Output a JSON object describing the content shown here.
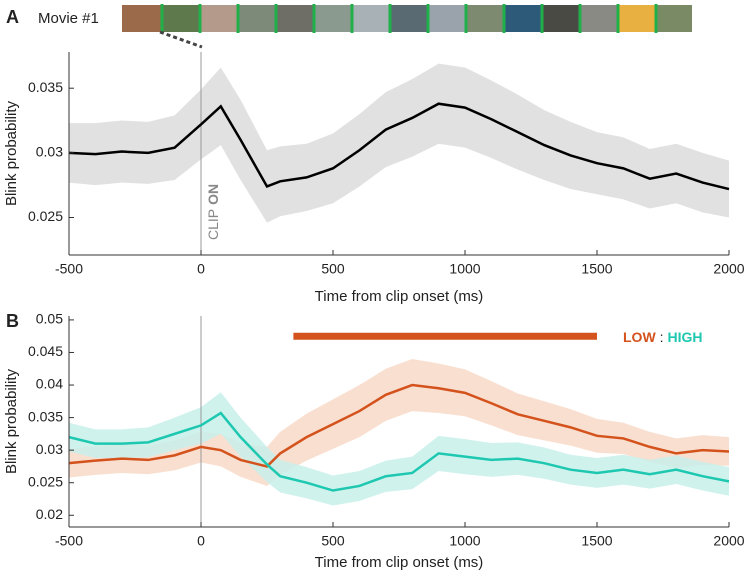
{
  "panel_labels": [
    "A",
    "B"
  ],
  "movie_label": "Movie #1",
  "chart_data": [
    {
      "type": "line-band",
      "clip_label": [
        "CLIP",
        "ON"
      ],
      "xlabel": "Time from clip onset (ms)",
      "ylabel": "Blink probability",
      "xlim": [
        -500,
        2000
      ],
      "ylim": [
        0.0221,
        0.0378
      ],
      "xticks": [
        -500,
        0,
        500,
        1000,
        1500,
        2000
      ],
      "yticks": [
        0.025,
        0.03,
        0.035
      ],
      "vline": 0,
      "x": [
        -500,
        -400,
        -300,
        -200,
        -100,
        0,
        75,
        150,
        250,
        300,
        400,
        500,
        600,
        700,
        800,
        900,
        1000,
        1100,
        1200,
        1300,
        1400,
        1500,
        1600,
        1700,
        1800,
        1900,
        2000
      ],
      "series": [
        {
          "color": "#000000",
          "band_color": "#dcdcdc",
          "values": [
            0.03,
            0.0299,
            0.0301,
            0.03,
            0.0304,
            0.0322,
            0.0336,
            0.031,
            0.0274,
            0.0278,
            0.0281,
            0.0288,
            0.0302,
            0.0318,
            0.0327,
            0.0338,
            0.0335,
            0.0326,
            0.0316,
            0.0306,
            0.0298,
            0.0292,
            0.0288,
            0.028,
            0.0284,
            0.0277,
            0.0272
          ],
          "error": [
            0.0023,
            0.0024,
            0.0024,
            0.0024,
            0.0025,
            0.0027,
            0.003,
            0.0031,
            0.0028,
            0.0027,
            0.0026,
            0.0027,
            0.0028,
            0.0029,
            0.003,
            0.0031,
            0.0031,
            0.003,
            0.0029,
            0.0027,
            0.0026,
            0.0024,
            0.0024,
            0.0023,
            0.0023,
            0.0023,
            0.0022
          ]
        }
      ]
    },
    {
      "type": "line-band",
      "xlabel": "Time from clip onset (ms)",
      "ylabel": "Blink probability",
      "xlim": [
        -500,
        2000
      ],
      "ylim": [
        0.0182,
        0.0506
      ],
      "xticks": [
        -500,
        0,
        500,
        1000,
        1500,
        2000
      ],
      "yticks": [
        0.02,
        0.025,
        0.03,
        0.035,
        0.04,
        0.045,
        0.05
      ],
      "vline": 0,
      "legend_separator": ":",
      "significance": {
        "x": [
          350,
          1500
        ],
        "y": 0.0475,
        "color": "#d4521c"
      },
      "x": [
        -500,
        -400,
        -300,
        -200,
        -100,
        0,
        75,
        150,
        250,
        300,
        400,
        500,
        600,
        700,
        800,
        900,
        1000,
        1100,
        1200,
        1300,
        1400,
        1500,
        1600,
        1700,
        1800,
        1900,
        2000
      ],
      "series": [
        {
          "name": "LOW",
          "color": "#d4521c",
          "band_color": "#f8d9c8",
          "values": [
            0.028,
            0.0284,
            0.0287,
            0.0285,
            0.0292,
            0.0305,
            0.03,
            0.0285,
            0.0275,
            0.0295,
            0.032,
            0.034,
            0.036,
            0.0385,
            0.04,
            0.0395,
            0.0388,
            0.0372,
            0.0355,
            0.0345,
            0.0335,
            0.0322,
            0.0318,
            0.0305,
            0.0295,
            0.03,
            0.0298
          ],
          "error": [
            0.0022,
            0.0022,
            0.0022,
            0.0022,
            0.0023,
            0.0024,
            0.0025,
            0.0026,
            0.003,
            0.0033,
            0.0036,
            0.0038,
            0.004,
            0.004,
            0.004,
            0.0038,
            0.0036,
            0.0034,
            0.0032,
            0.003,
            0.0028,
            0.0026,
            0.0024,
            0.0023,
            0.0023,
            0.0023,
            0.0022
          ]
        },
        {
          "name": "HIGH",
          "color": "#1ec8b0",
          "band_color": "#c8f0ea",
          "values": [
            0.032,
            0.031,
            0.031,
            0.0312,
            0.0325,
            0.0338,
            0.0357,
            0.032,
            0.0278,
            0.026,
            0.025,
            0.0238,
            0.0245,
            0.026,
            0.0265,
            0.0295,
            0.029,
            0.0285,
            0.0287,
            0.028,
            0.027,
            0.0265,
            0.027,
            0.0263,
            0.027,
            0.026,
            0.0252
          ],
          "error": [
            0.0022,
            0.0022,
            0.0022,
            0.0023,
            0.0025,
            0.0028,
            0.0032,
            0.003,
            0.0027,
            0.0025,
            0.0024,
            0.0023,
            0.0023,
            0.0024,
            0.0025,
            0.0027,
            0.0027,
            0.0026,
            0.0025,
            0.0024,
            0.0023,
            0.0023,
            0.0023,
            0.0022,
            0.0022,
            0.0022,
            0.0022
          ]
        }
      ]
    }
  ]
}
